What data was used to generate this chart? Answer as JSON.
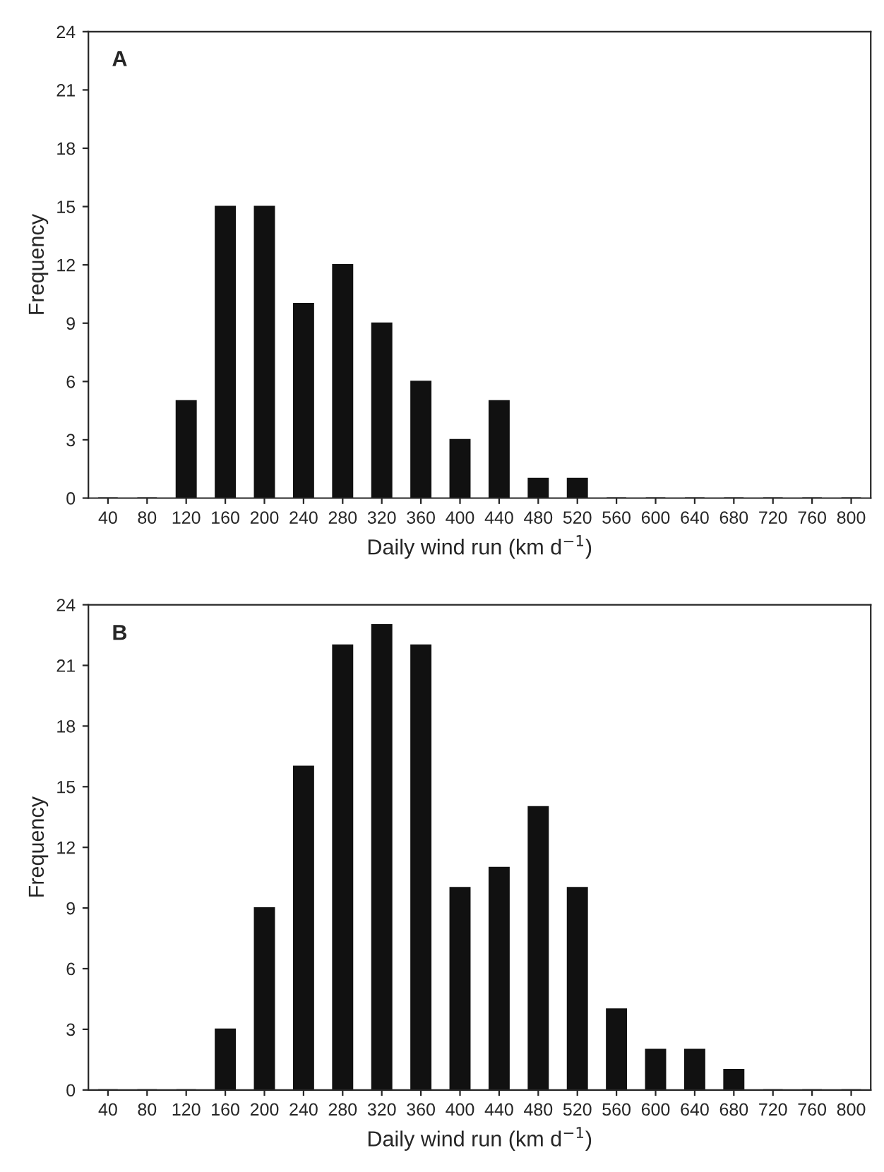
{
  "chart_data": [
    {
      "type": "bar",
      "title": "A",
      "xlabel": "Daily wind run (km d$^{−1}$)",
      "ylabel": "Frequency",
      "categories": [
        "40",
        "80",
        "120",
        "160",
        "200",
        "240",
        "280",
        "320",
        "360",
        "400",
        "440",
        "480",
        "520",
        "560",
        "600",
        "640",
        "680",
        "720",
        "760",
        "800"
      ],
      "values": [
        0,
        0,
        5,
        15,
        15,
        10,
        12,
        9,
        6,
        3,
        5,
        1,
        1,
        0,
        0,
        0,
        0,
        0,
        0,
        0
      ],
      "color": "#111111",
      "ylim": [
        0,
        24
      ],
      "yticks": [
        0,
        3,
        6,
        9,
        12,
        15,
        18,
        21,
        24
      ],
      "grid": false,
      "legend": false
    },
    {
      "type": "bar",
      "title": "B",
      "xlabel": "Daily wind run (km d$^{−1}$)",
      "ylabel": "Frequency",
      "categories": [
        "40",
        "80",
        "120",
        "160",
        "200",
        "240",
        "280",
        "320",
        "360",
        "400",
        "440",
        "480",
        "520",
        "560",
        "600",
        "640",
        "680",
        "720",
        "760",
        "800"
      ],
      "values": [
        0,
        0,
        0,
        3,
        9,
        16,
        22,
        23,
        22,
        10,
        11,
        14,
        10,
        4,
        2,
        2,
        1,
        0,
        0,
        0
      ],
      "color": "#111111",
      "ylim": [
        0,
        24
      ],
      "yticks": [
        0,
        3,
        6,
        9,
        12,
        15,
        18,
        21,
        24
      ],
      "grid": false,
      "legend": false
    }
  ]
}
